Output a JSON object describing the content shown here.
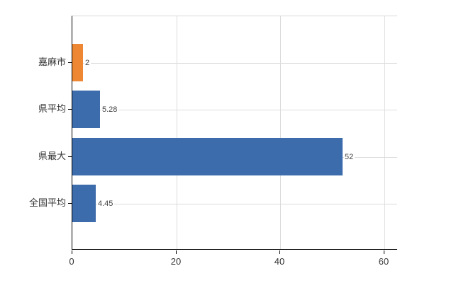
{
  "chart_data": {
    "type": "bar",
    "orientation": "horizontal",
    "title": "",
    "xlabel": "",
    "ylabel": "",
    "categories": [
      "嘉麻市",
      "県平均",
      "県最大",
      "全国平均"
    ],
    "values": [
      2,
      5.28,
      52,
      4.45
    ],
    "value_labels": [
      "2",
      "5.28",
      "52",
      "4.45"
    ],
    "bar_colors": [
      "#ed8733",
      "#3c6cac",
      "#3c6cac",
      "#3c6cac"
    ],
    "x_ticks": [
      0,
      20,
      40,
      60
    ],
    "x_tick_labels": [
      "0",
      "20",
      "40",
      "60"
    ],
    "xlim": [
      0,
      62.6
    ],
    "grid": "on",
    "legend": "none",
    "colors": {
      "orange_bar": "#ed8733",
      "blue_bar": "#3c6cac",
      "gridline": "#dcdcdc",
      "axis": "#000000",
      "text": "#333333",
      "background": "#ffffff"
    }
  }
}
